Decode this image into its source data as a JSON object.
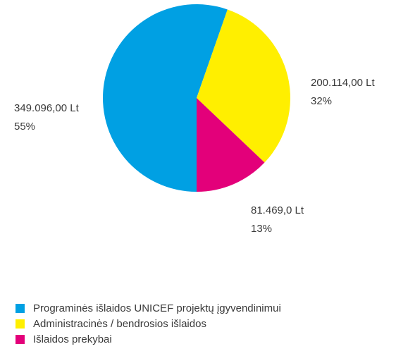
{
  "chart_data": {
    "type": "pie",
    "title": "",
    "slices": [
      {
        "name": "Programinės išlaidos UNICEF projektų įgyvendinimui",
        "value": 349096.0,
        "value_label": "349.096,00 Lt",
        "percent_label": "55%",
        "color": "#00a0e3"
      },
      {
        "name": "Administracinės / bendrosios išlaidos",
        "value": 200114.0,
        "value_label": "200.114,00 Lt",
        "percent_label": "32%",
        "color": "#ffef00"
      },
      {
        "name": "Išlaidos prekybai",
        "value": 81469.0,
        "value_label": "81.469,0 Lt",
        "percent_label": "13%",
        "color": "#e3007a"
      }
    ],
    "legend_position": "bottom-left"
  }
}
